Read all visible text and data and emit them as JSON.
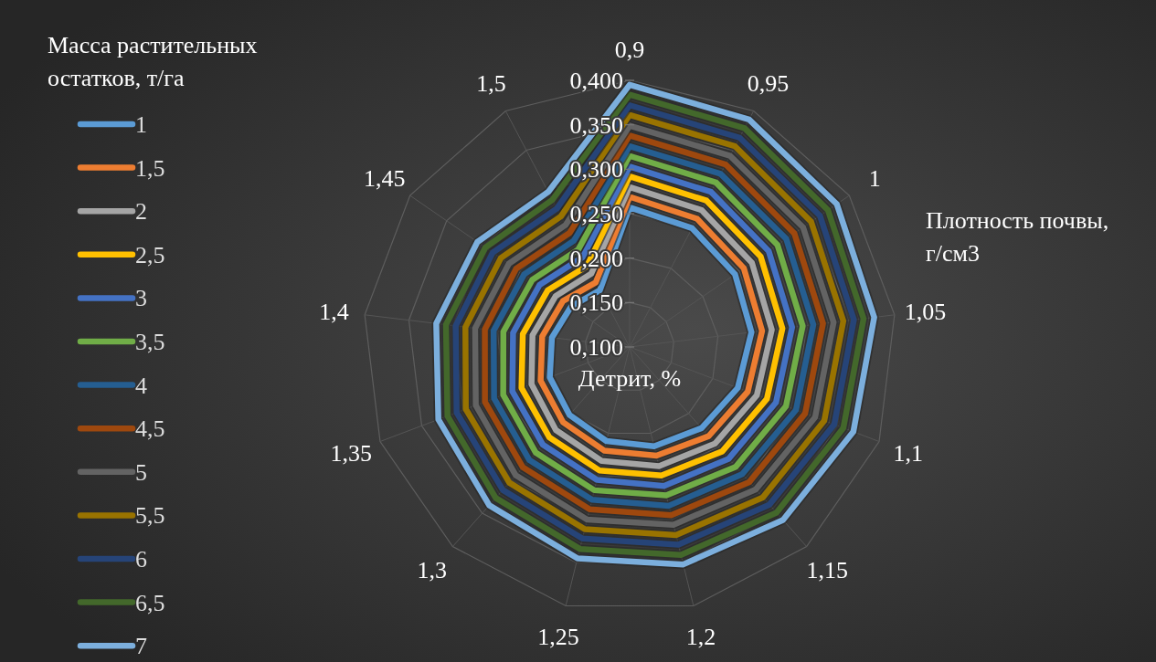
{
  "chart_data": {
    "type": "radar",
    "xlabel": "Плотность почвы, г/см3",
    "ylabel": "Детрит, %",
    "legend_title": "Масса растительных остатков, т/га",
    "legend": "left",
    "grid": true,
    "categories": [
      "0,9",
      "0,95",
      "1",
      "1,05",
      "1,1",
      "1,15",
      "1,2",
      "1,25",
      "1,3",
      "1,35",
      "1,4",
      "1,45",
      "1,5"
    ],
    "ylim": [
      0.1,
      0.4
    ],
    "yticks": [
      {
        "value": 0.1,
        "label": "0,100"
      },
      {
        "value": 0.15,
        "label": "0,150"
      },
      {
        "value": 0.2,
        "label": "0,200"
      },
      {
        "value": 0.25,
        "label": "0,250"
      },
      {
        "value": 0.3,
        "label": "0,300"
      },
      {
        "value": 0.35,
        "label": "0,350"
      },
      {
        "value": 0.4,
        "label": "0,400"
      }
    ],
    "series": [
      {
        "name": "1",
        "color": "#5b9bd5",
        "values": [
          0.257,
          0.251,
          0.244,
          0.238,
          0.23,
          0.222,
          0.215,
          0.209,
          0.202,
          0.196,
          0.188,
          0.18,
          0.172
        ]
      },
      {
        "name": "1,5",
        "color": "#ed7d31",
        "values": [
          0.269,
          0.263,
          0.256,
          0.25,
          0.242,
          0.234,
          0.226,
          0.22,
          0.213,
          0.207,
          0.199,
          0.191,
          0.182
        ]
      },
      {
        "name": "2",
        "color": "#a5a5a5",
        "values": [
          0.28,
          0.274,
          0.267,
          0.261,
          0.253,
          0.245,
          0.238,
          0.232,
          0.225,
          0.218,
          0.21,
          0.201,
          0.193
        ]
      },
      {
        "name": "2,5",
        "color": "#ffc000",
        "values": [
          0.292,
          0.286,
          0.279,
          0.273,
          0.265,
          0.257,
          0.249,
          0.243,
          0.236,
          0.23,
          0.221,
          0.212,
          0.203
        ]
      },
      {
        "name": "3",
        "color": "#4472c4",
        "values": [
          0.303,
          0.297,
          0.29,
          0.284,
          0.276,
          0.268,
          0.261,
          0.254,
          0.247,
          0.241,
          0.232,
          0.223,
          0.214
        ]
      },
      {
        "name": "3,5",
        "color": "#70ad47",
        "values": [
          0.315,
          0.309,
          0.302,
          0.296,
          0.288,
          0.28,
          0.272,
          0.266,
          0.259,
          0.252,
          0.243,
          0.233,
          0.224
        ]
      },
      {
        "name": "4",
        "color": "#255e91",
        "values": [
          0.326,
          0.32,
          0.314,
          0.308,
          0.3,
          0.291,
          0.284,
          0.277,
          0.27,
          0.263,
          0.254,
          0.244,
          0.235
        ]
      },
      {
        "name": "4,5",
        "color": "#9e480e",
        "values": [
          0.338,
          0.332,
          0.325,
          0.319,
          0.311,
          0.303,
          0.295,
          0.288,
          0.281,
          0.274,
          0.264,
          0.255,
          0.245
        ]
      },
      {
        "name": "5",
        "color": "#636363",
        "values": [
          0.349,
          0.343,
          0.337,
          0.331,
          0.323,
          0.314,
          0.306,
          0.3,
          0.293,
          0.285,
          0.275,
          0.265,
          0.255
        ]
      },
      {
        "name": "5,5",
        "color": "#997300",
        "values": [
          0.361,
          0.355,
          0.348,
          0.342,
          0.334,
          0.326,
          0.318,
          0.311,
          0.304,
          0.297,
          0.286,
          0.276,
          0.266
        ]
      },
      {
        "name": "6",
        "color": "#264478",
        "values": [
          0.372,
          0.366,
          0.36,
          0.354,
          0.346,
          0.337,
          0.329,
          0.322,
          0.315,
          0.308,
          0.297,
          0.287,
          0.276
        ]
      },
      {
        "name": "6,5",
        "color": "#43682b",
        "values": [
          0.384,
          0.378,
          0.371,
          0.365,
          0.357,
          0.349,
          0.341,
          0.334,
          0.327,
          0.319,
          0.308,
          0.297,
          0.287
        ]
      },
      {
        "name": "7",
        "color": "#7cafdd",
        "values": [
          0.395,
          0.389,
          0.383,
          0.377,
          0.369,
          0.36,
          0.352,
          0.345,
          0.338,
          0.33,
          0.319,
          0.308,
          0.297
        ]
      }
    ]
  }
}
